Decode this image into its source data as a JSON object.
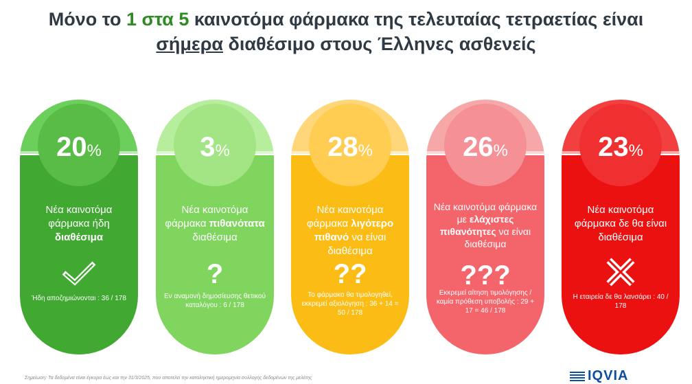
{
  "title": {
    "line1_pre": "Μόνο το ",
    "line1_hl": "1 στα 5",
    "line1_post": " καινοτόμα φάρμακα της τελευταίας τετραετίας είναι",
    "line2_ul": "σήμερα",
    "line2_post": " διαθέσιμο στους Έλληνες ασθενείς"
  },
  "cards": [
    {
      "percent": "20",
      "percent_sign": "%",
      "desc_plain": "Νέα καινοτόμα φάρμακα ήδη ",
      "desc_bold": "διαθέσιμα",
      "desc_tail": "",
      "icon_name": "checkmark-icon",
      "note": "Ήδη αποζημιώνονται : 36 / 178",
      "colors": {
        "top": "#6ccf5c",
        "bottom": "#41a832",
        "circle": "#58bc47"
      }
    },
    {
      "percent": "3",
      "percent_sign": "%",
      "desc_plain": "Νέα καινοτόμα φάρμακα ",
      "desc_bold": "πιθανότατα",
      "desc_tail": " διαθέσιμα",
      "icon_name": "question-icon",
      "icon_text": "?",
      "note": "Εν αναμονή δημοσίευσης θετικού καταλόγου : 6 / 178",
      "colors": {
        "top": "#b6ee9e",
        "bottom": "#7fd55e",
        "circle": "#a3e585"
      }
    },
    {
      "percent": "28",
      "percent_sign": "%",
      "desc_plain": "Νέα καινοτόμα φάρμακα ",
      "desc_bold": "λιγότερο πιθανό",
      "desc_tail": " να είναι διαθέσιμα",
      "icon_name": "double-question-icon",
      "icon_text": "??",
      "note": "Το φάρμακο θα τιμολογηθεί, εκκρεμεί αξιολόγηση : 36 + 14 = 50 / 178",
      "colors": {
        "top": "#ffd77a",
        "bottom": "#fbbd15",
        "circle": "#ffcd52"
      }
    },
    {
      "percent": "26",
      "percent_sign": "%",
      "desc_plain": "Νέα καινοτόμα φάρμακα με ",
      "desc_bold": "ελάχιστες πιθανότητες",
      "desc_tail": " να είναι διαθέσιμα",
      "icon_name": "triple-question-icon",
      "icon_text": "???",
      "note": "Εκκρεμεί αίτηση τιμολόγησης / καμία πρόθεση υποβολής : 29 + 17 = 46 / 178",
      "colors": {
        "top": "#f6a8a8",
        "bottom": "#f4646b",
        "circle": "#f49096"
      }
    },
    {
      "percent": "23",
      "percent_sign": "%",
      "desc_plain": "Νέα καινοτόμα φάρμακα δε θα είναι διαθέσιμα",
      "desc_bold": "",
      "desc_tail": "",
      "icon_name": "cross-icon",
      "note": "Η εταιρεία δε θα λανσάρει : 40 / 178",
      "colors": {
        "top": "#f24040",
        "bottom": "#ec1111",
        "circle": "#f03030"
      }
    }
  ],
  "footer_text": "Σημείωση: Τα δεδομένα είναι έγκυρα έως και την 31/3/2025, που αποτελεί την καταληκτική ημερομηνία συλλογής δεδομένων της μελέτης",
  "logo_text": "IQVIA"
}
